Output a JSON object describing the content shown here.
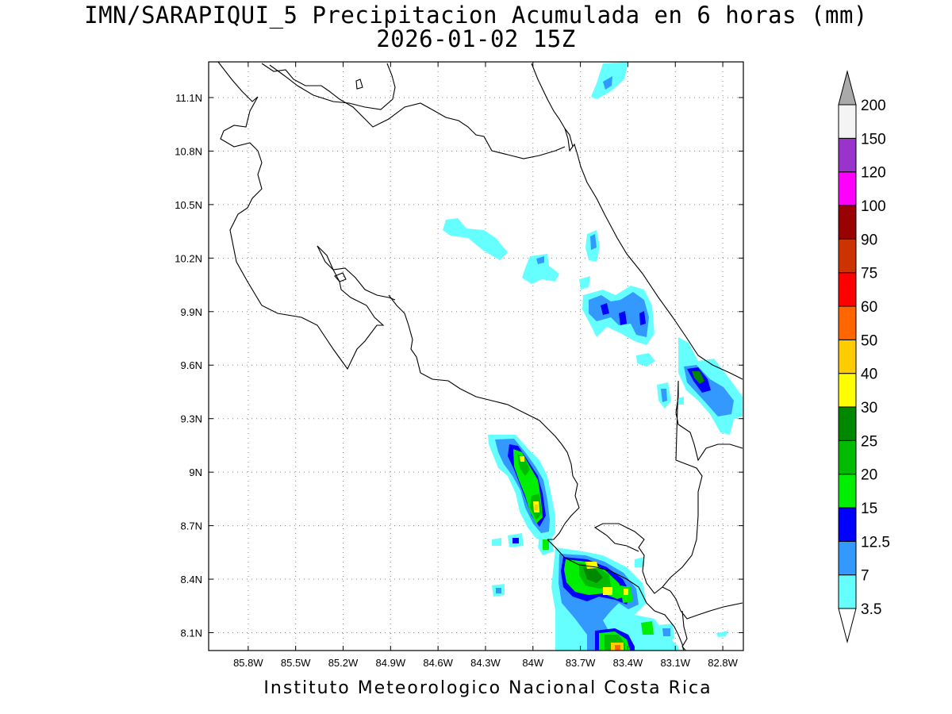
{
  "title": {
    "line1": "IMN/SARAPIQUI_5 Precipitacion Acumulada en 6 horas (mm)",
    "line2": "2026-01-02 15Z"
  },
  "footer": "Instituto Meteorologico Nacional Costa Rica",
  "map": {
    "lon_range": [
      -86.05,
      -82.67
    ],
    "lat_range": [
      8.0,
      11.3
    ],
    "lon_ticks": [
      {
        "value": -85.8,
        "label": "85.8W"
      },
      {
        "value": -85.5,
        "label": "85.5W"
      },
      {
        "value": -85.2,
        "label": "85.2W"
      },
      {
        "value": -84.9,
        "label": "84.9W"
      },
      {
        "value": -84.6,
        "label": "84.6W"
      },
      {
        "value": -84.3,
        "label": "84.3W"
      },
      {
        "value": -84.0,
        "label": "84W"
      },
      {
        "value": -83.7,
        "label": "83.7W"
      },
      {
        "value": -83.4,
        "label": "83.4W"
      },
      {
        "value": -83.1,
        "label": "83.1W"
      },
      {
        "value": -82.8,
        "label": "82.8W"
      }
    ],
    "lat_ticks": [
      {
        "value": 11.1,
        "label": "11.1N"
      },
      {
        "value": 10.8,
        "label": "10.8N"
      },
      {
        "value": 10.5,
        "label": "10.5N"
      },
      {
        "value": 10.2,
        "label": "10.2N"
      },
      {
        "value": 9.9,
        "label": "9.9N"
      },
      {
        "value": 9.6,
        "label": "9.6N"
      },
      {
        "value": 9.3,
        "label": "9.3N"
      },
      {
        "value": 9.0,
        "label": "9N"
      },
      {
        "value": 8.7,
        "label": "8.7N"
      },
      {
        "value": 8.4,
        "label": "8.4N"
      },
      {
        "value": 8.1,
        "label": "8.1N"
      }
    ],
    "grid": "dotted"
  },
  "colorbar": {
    "labels": [
      "3.5",
      "7",
      "12.5",
      "15",
      "20",
      "25",
      "30",
      "40",
      "50",
      "60",
      "75",
      "90",
      "100",
      "120",
      "150",
      "200"
    ],
    "colors": [
      "#66ffff",
      "#3399ff",
      "#0000ff",
      "#00ee00",
      "#00bb00",
      "#008800",
      "#ffff00",
      "#ffcc00",
      "#ff6600",
      "#ff0000",
      "#cc3300",
      "#990000",
      "#ff00ff",
      "#9933cc",
      "#f4f4f4",
      "#aaaaaa"
    ]
  }
}
